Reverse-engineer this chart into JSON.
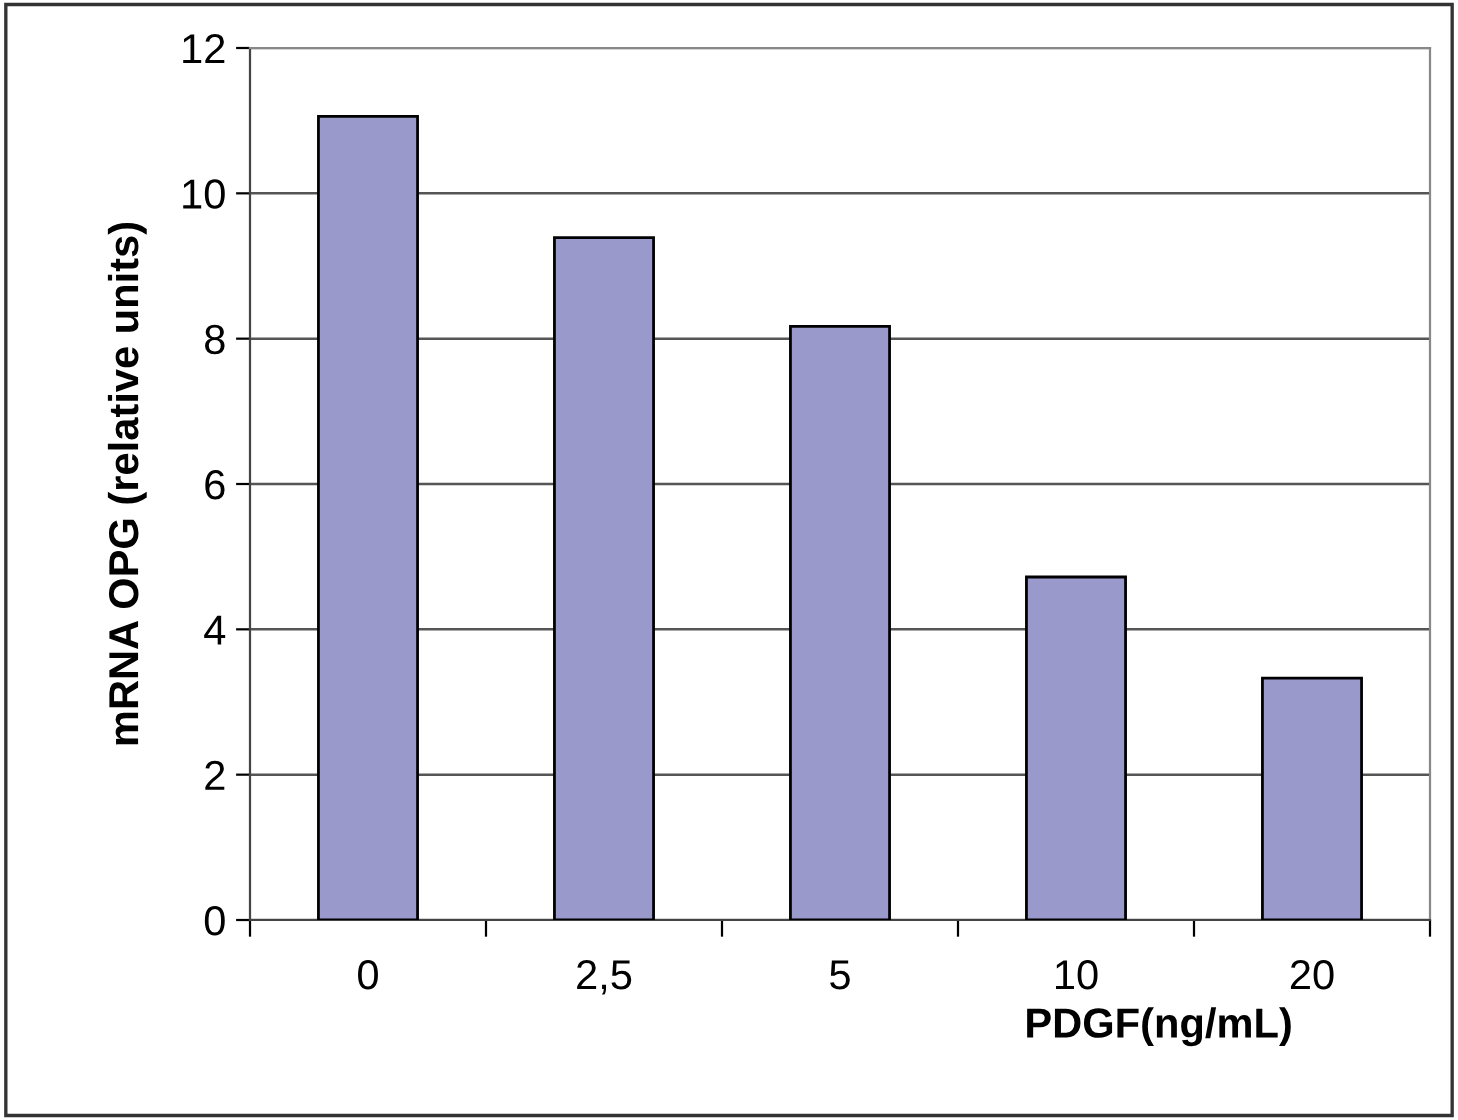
{
  "chart_data": {
    "type": "bar",
    "xlabel": "PDGF(ng/mL)",
    "ylabel": "mRNA OPG (relative units)",
    "categories": [
      "0",
      "2,5",
      "5",
      "10",
      "20"
    ],
    "values": [
      11.06,
      9.39,
      8.17,
      4.72,
      3.33
    ],
    "color": "#9999cc",
    "ylim": [
      0,
      12
    ],
    "yticks": [
      0,
      2,
      4,
      6,
      8,
      10,
      12
    ],
    "grid": "y"
  }
}
